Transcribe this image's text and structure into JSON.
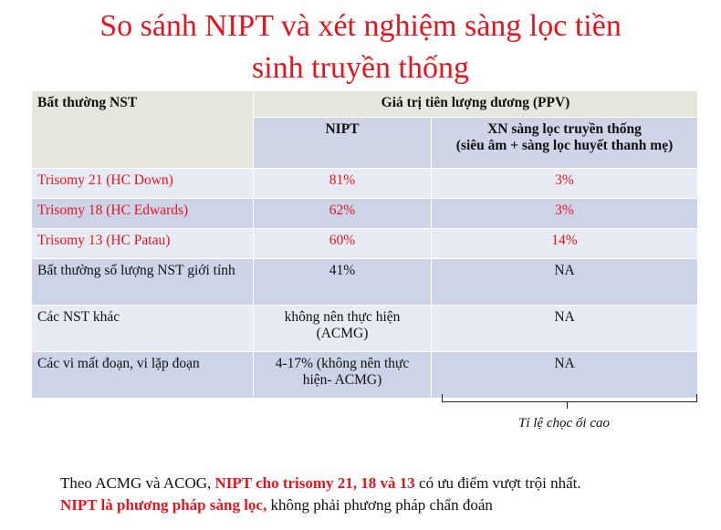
{
  "title": {
    "line1": "So sánh NIPT và xét nghiệm sàng lọc tiền",
    "line2": "sinh truyền thống"
  },
  "table": {
    "col1_header": "Bất thường NST",
    "ppv_header": "Giá trị tiên lượng dương (PPV)",
    "nipt_header": "NIPT",
    "xn_header_line1": "XN sàng lọc truyền thống",
    "xn_header_line2": "(siêu âm + sàng lọc huyết thanh mẹ)",
    "rows": [
      {
        "label": "Trisomy 21 (HC Down)",
        "nipt": "81%",
        "xn": "3%"
      },
      {
        "label": "Trisomy 18 (HC Edwards)",
        "nipt": "62%",
        "xn": "3%"
      },
      {
        "label": "Trisomy 13 (HC Patau)",
        "nipt": "60%",
        "xn": "14%"
      },
      {
        "label": "Bất thường số lượng NST giới tính",
        "nipt": "41%",
        "xn": "NA"
      },
      {
        "label": "Các NST khác",
        "nipt": "không nên thực hiện (ACMG)",
        "xn": "NA"
      },
      {
        "label": "Các vi mất đoạn, vi lặp đoạn",
        "nipt": "4-17% (không nên thực hiện- ACMG)",
        "xn": "NA"
      }
    ]
  },
  "bracket_note": "Tỉ lệ chọc ối cao",
  "footer": {
    "line1_a": "Theo ACMG và ACOG, ",
    "line1_b": "NIPT cho trisomy 21, 18 và 13",
    "line1_c": " có ưu điểm vượt trội nhất.",
    "line2_a": "NIPT là phương pháp sàng lọc,",
    "line2_b": " không phải phương pháp chẩn đoán"
  },
  "colors": {
    "accent_red": "#e8141d",
    "header_bg": "#e6e6dc",
    "row_light": "#e7ebf3",
    "row_dark": "#ced4e7"
  }
}
